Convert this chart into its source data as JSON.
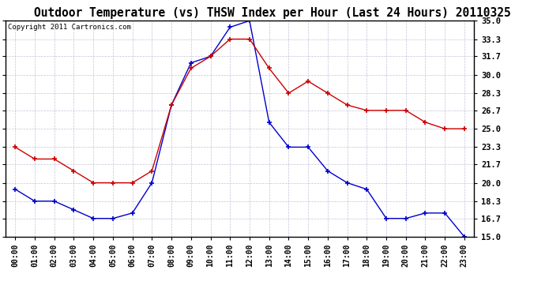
{
  "title": "Outdoor Temperature (vs) THSW Index per Hour (Last 24 Hours) 20110325",
  "copyright": "Copyright 2011 Cartronics.com",
  "hours": [
    "00:00",
    "01:00",
    "02:00",
    "03:00",
    "04:00",
    "05:00",
    "06:00",
    "07:00",
    "08:00",
    "09:00",
    "10:00",
    "11:00",
    "12:00",
    "13:00",
    "14:00",
    "15:00",
    "16:00",
    "17:00",
    "18:00",
    "19:00",
    "20:00",
    "21:00",
    "22:00",
    "23:00"
  ],
  "temp_blue": [
    19.4,
    18.3,
    18.3,
    17.5,
    16.7,
    16.7,
    17.2,
    20.0,
    27.2,
    31.1,
    31.7,
    34.4,
    35.0,
    25.6,
    23.3,
    23.3,
    21.1,
    20.0,
    19.4,
    16.7,
    16.7,
    17.2,
    17.2,
    15.0
  ],
  "thsw_red": [
    23.3,
    22.2,
    22.2,
    21.1,
    20.0,
    20.0,
    20.0,
    21.1,
    27.2,
    30.6,
    31.7,
    33.3,
    33.3,
    30.6,
    28.3,
    29.4,
    28.3,
    27.2,
    26.7,
    26.7,
    26.7,
    25.6,
    25.0,
    25.0
  ],
  "ylim": [
    15.0,
    35.0
  ],
  "yticks": [
    15.0,
    16.7,
    18.3,
    20.0,
    21.7,
    23.3,
    25.0,
    26.7,
    28.3,
    30.0,
    31.7,
    33.3,
    35.0
  ],
  "bg_color": "#ffffff",
  "grid_color": "#aaaacc",
  "blue_color": "#0000cc",
  "red_color": "#cc0000",
  "title_fontsize": 10.5,
  "copyright_fontsize": 6.5,
  "tick_fontsize": 7.5,
  "xtick_fontsize": 7.0
}
